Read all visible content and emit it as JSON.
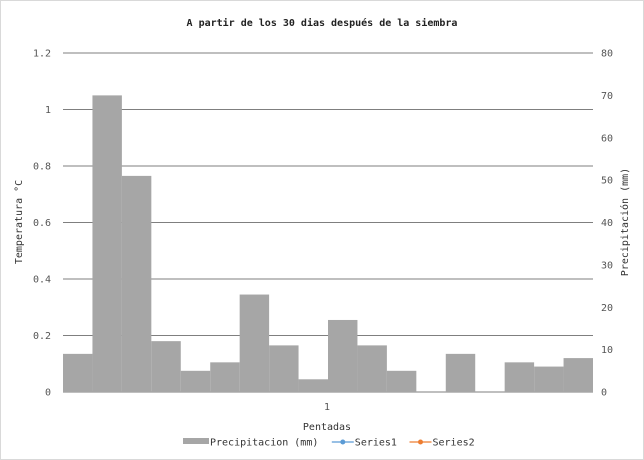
{
  "chart_data": {
    "type": "bar",
    "title": "A partir de los 30 dias después de la siembra",
    "xlabel": "Pentadas",
    "ylabel": "Temperatura °C",
    "y2label": "Precipitación (mm)",
    "x_tick_label": "1",
    "ylim": [
      0,
      1.2
    ],
    "y_ticks": [
      "0",
      "0.2",
      "0.4",
      "0.6",
      "0.8",
      "1",
      "1.2"
    ],
    "y2lim": [
      0,
      80
    ],
    "y2_ticks": [
      "0",
      "10",
      "20",
      "30",
      "40",
      "50",
      "60",
      "70",
      "80"
    ],
    "grid": true,
    "legend_position": "bottom",
    "series": [
      {
        "name": "Precipitacion (mm)",
        "axis": "right",
        "color": "#a6a6a6",
        "values": [
          9,
          70,
          51,
          12,
          5,
          7,
          23,
          11,
          3,
          17,
          11,
          5,
          0,
          9,
          0,
          7,
          6,
          8
        ]
      },
      {
        "name": "Series1",
        "axis": "left",
        "color": "#5b9bd5",
        "values": []
      },
      {
        "name": "Series2",
        "axis": "left",
        "color": "#ed7d31",
        "values": []
      }
    ]
  }
}
